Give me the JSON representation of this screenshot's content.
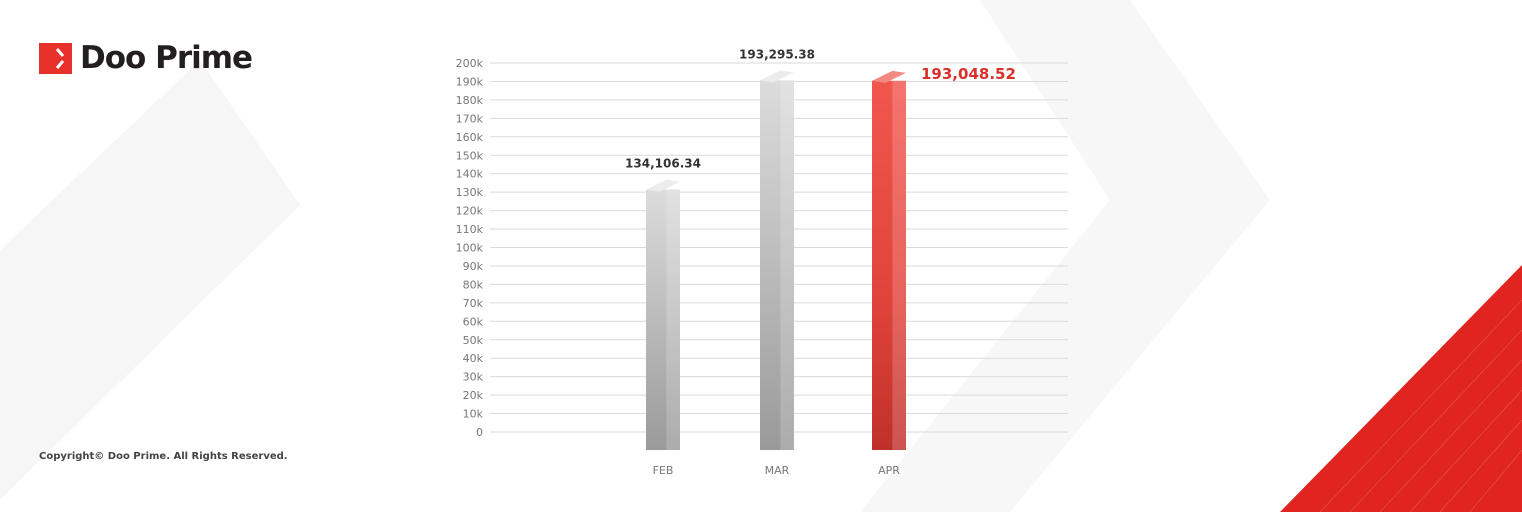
{
  "brand": {
    "name": "Doo Prime",
    "color": "#e8312a"
  },
  "footer": {
    "copyright": "Copyright© Doo Prime. All Rights Reserved."
  },
  "chart_data": {
    "type": "bar",
    "categories": [
      "FEB",
      "MAR",
      "APR"
    ],
    "values": [
      134106.34,
      193295.38,
      193048.52
    ],
    "data_labels": [
      "134,106.34",
      "193,295.38",
      "193,048.52"
    ],
    "highlight_index": 2,
    "colors": {
      "default": "#d4d4d4",
      "highlight": "#e8473d",
      "highlight_label": "#d9302a",
      "label": "#333333"
    },
    "ylim": [
      0,
      200000
    ],
    "yticks": [
      "0",
      "10k",
      "20k",
      "30k",
      "40k",
      "50k",
      "60k",
      "70k",
      "80k",
      "90k",
      "100k",
      "110k",
      "120k",
      "130k",
      "140k",
      "150k",
      "160k",
      "170k",
      "180k",
      "190k",
      "200k"
    ],
    "grid": true,
    "xlabel": "",
    "ylabel": "",
    "title": ""
  }
}
